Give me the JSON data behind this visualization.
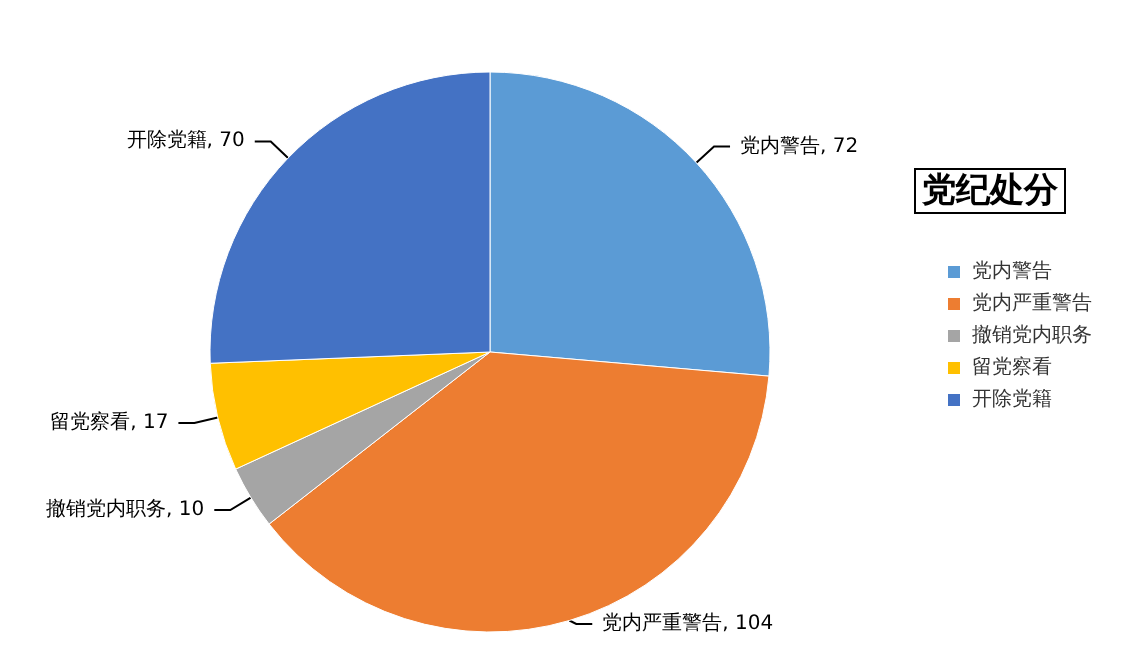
{
  "chart_data": {
    "type": "pie",
    "title": "党纪处分",
    "categories": [
      "党内警告",
      "党内严重警告",
      "撤销党内职务",
      "留党察看",
      "开除党籍"
    ],
    "values": [
      72,
      104,
      10,
      17,
      70
    ],
    "value_labels": [
      "党内警告, 72",
      "党内严重警告, 104",
      "撤销党内职务, 10",
      "留党察看, 17",
      "开除党籍, 70"
    ],
    "colors": [
      "#5b9bd5",
      "#ed7d31",
      "#a5a5a5",
      "#ffc000",
      "#4472c4"
    ],
    "legend": "right"
  }
}
